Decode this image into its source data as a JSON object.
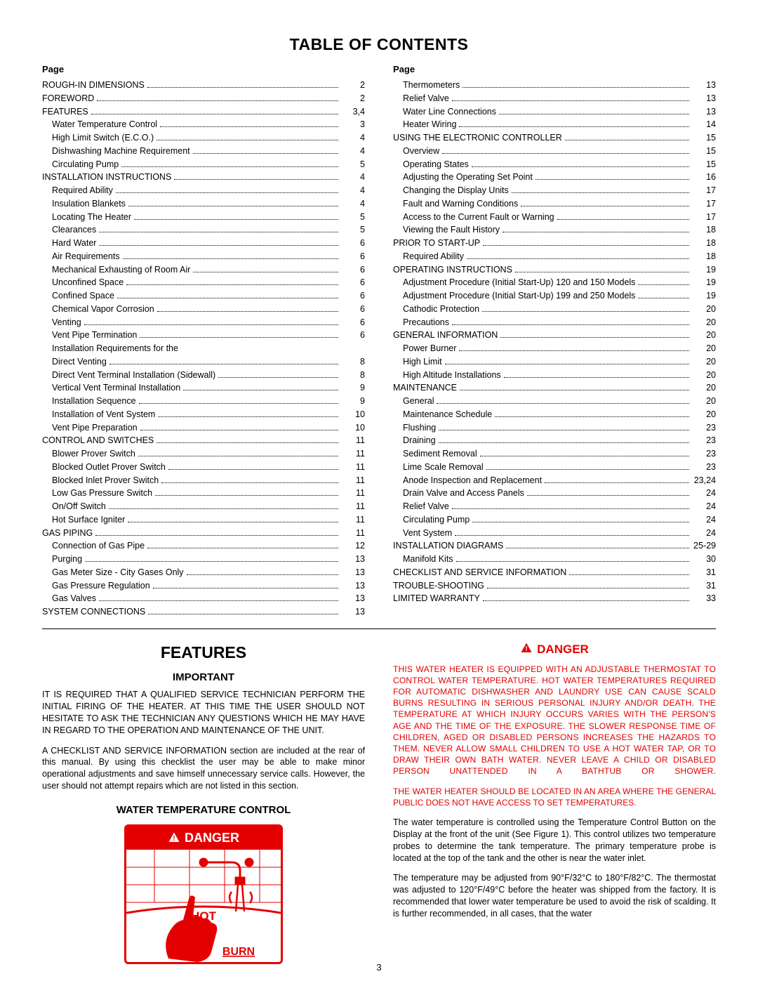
{
  "toc_title": "TABLE OF CONTENTS",
  "page_label": "Page",
  "page_number": "3",
  "toc_left": [
    {
      "label": "ROUGH-IN DIMENSIONS",
      "page": "2",
      "indent": 0
    },
    {
      "label": "FOREWORD",
      "page": "2",
      "indent": 0
    },
    {
      "label": "FEATURES",
      "page": "3,4",
      "indent": 0
    },
    {
      "label": "Water Temperature Control",
      "page": "3",
      "indent": 1
    },
    {
      "label": "High Limit Switch (E.C.O.)",
      "page": "4",
      "indent": 1
    },
    {
      "label": "Dishwashing Machine Requirement",
      "page": "4",
      "indent": 1
    },
    {
      "label": "Circulating Pump",
      "page": "5",
      "indent": 1
    },
    {
      "label": "INSTALLATION INSTRUCTIONS",
      "page": "4",
      "indent": 0
    },
    {
      "label": "Required Ability",
      "page": "4",
      "indent": 1
    },
    {
      "label": "Insulation Blankets",
      "page": "4",
      "indent": 1
    },
    {
      "label": "Locating The Heater",
      "page": "5",
      "indent": 1
    },
    {
      "label": "Clearances",
      "page": "5",
      "indent": 1
    },
    {
      "label": "Hard Water",
      "page": "6",
      "indent": 1
    },
    {
      "label": "Air Requirements",
      "page": "6",
      "indent": 1
    },
    {
      "label": "Mechanical Exhausting of Room Air",
      "page": "6",
      "indent": 1
    },
    {
      "label": "Unconfined Space",
      "page": "6",
      "indent": 1
    },
    {
      "label": "Confined Space",
      "page": "6",
      "indent": 1
    },
    {
      "label": "Chemical Vapor Corrosion",
      "page": "6",
      "indent": 1
    },
    {
      "label": "Venting",
      "page": "6",
      "indent": 1
    },
    {
      "label": "Vent Pipe Termination",
      "page": "6",
      "indent": 1
    },
    {
      "label": "Installation Requirements for the",
      "page": "",
      "indent": 1,
      "nodots": true
    },
    {
      "label": "Direct Venting",
      "page": "8",
      "indent": 1
    },
    {
      "label": "Direct Vent Terminal Installation (Sidewall)",
      "page": "8",
      "indent": 1
    },
    {
      "label": "Vertical Vent Terminal Installation",
      "page": "9",
      "indent": 1
    },
    {
      "label": "Installation Sequence",
      "page": "9",
      "indent": 1
    },
    {
      "label": "Installation of Vent System",
      "page": "10",
      "indent": 1
    },
    {
      "label": "Vent Pipe Preparation",
      "page": "10",
      "indent": 1
    },
    {
      "label": "CONTROL AND SWITCHES",
      "page": "11",
      "indent": 0
    },
    {
      "label": "Blower Prover Switch",
      "page": "11",
      "indent": 1
    },
    {
      "label": "Blocked Outlet Prover Switch",
      "page": "11",
      "indent": 1
    },
    {
      "label": "Blocked Inlet Prover Switch",
      "page": "11",
      "indent": 1
    },
    {
      "label": "Low Gas Pressure Switch",
      "page": "11",
      "indent": 1
    },
    {
      "label": "On/Off Switch",
      "page": "11",
      "indent": 1
    },
    {
      "label": "Hot Surface Igniter",
      "page": "11",
      "indent": 1
    },
    {
      "label": "GAS PIPING",
      "page": "11",
      "indent": 0
    },
    {
      "label": "Connection of Gas Pipe",
      "page": "12",
      "indent": 1
    },
    {
      "label": "Purging",
      "page": "13",
      "indent": 1
    },
    {
      "label": "Gas Meter Size - City Gases Only",
      "page": "13",
      "indent": 1
    },
    {
      "label": "Gas Pressure Regulation",
      "page": "13",
      "indent": 1
    },
    {
      "label": "Gas Valves",
      "page": "13",
      "indent": 1
    },
    {
      "label": "SYSTEM CONNECTIONS",
      "page": "13",
      "indent": 0
    }
  ],
  "toc_right": [
    {
      "label": "Thermometers",
      "page": "13",
      "indent": 1
    },
    {
      "label": "Relief Valve",
      "page": "13",
      "indent": 1
    },
    {
      "label": "Water Line Connections",
      "page": "13",
      "indent": 1
    },
    {
      "label": "Heater Wiring",
      "page": "14",
      "indent": 1
    },
    {
      "label": "USING THE ELECTRONIC CONTROLLER",
      "page": "15",
      "indent": 0
    },
    {
      "label": "Overview",
      "page": "15",
      "indent": 1
    },
    {
      "label": "Operating States",
      "page": "15",
      "indent": 1
    },
    {
      "label": "Adjusting the Operating Set Point",
      "page": "16",
      "indent": 1
    },
    {
      "label": "Changing the Display Units",
      "page": "17",
      "indent": 1
    },
    {
      "label": "Fault and Warning Conditions",
      "page": "17",
      "indent": 1
    },
    {
      "label": "Access to the Current Fault or Warning",
      "page": "17",
      "indent": 1
    },
    {
      "label": "Viewing the Fault History",
      "page": "18",
      "indent": 1
    },
    {
      "label": "PRIOR TO START-UP",
      "page": "18",
      "indent": 0
    },
    {
      "label": "Required Ability",
      "page": "18",
      "indent": 1
    },
    {
      "label": "OPERATING INSTRUCTIONS",
      "page": "19",
      "indent": 0
    },
    {
      "label": "Adjustment Procedure (Initial Start-Up) 120 and 150 Models",
      "page": "19",
      "indent": 1
    },
    {
      "label": "Adjustment Procedure (Initial Start-Up) 199 and 250 Models",
      "page": "19",
      "indent": 1
    },
    {
      "label": "Cathodic Protection",
      "page": "20",
      "indent": 1
    },
    {
      "label": "Precautions",
      "page": "20",
      "indent": 1
    },
    {
      "label": "GENERAL INFORMATION",
      "page": "20",
      "indent": 0
    },
    {
      "label": "Power Burner",
      "page": "20",
      "indent": 1
    },
    {
      "label": "High Limit",
      "page": "20",
      "indent": 1
    },
    {
      "label": "High Altitude Installations",
      "page": "20",
      "indent": 1
    },
    {
      "label": "MAINTENANCE",
      "page": "20",
      "indent": 0
    },
    {
      "label": "General",
      "page": "20",
      "indent": 1
    },
    {
      "label": "Maintenance Schedule",
      "page": "20",
      "indent": 1
    },
    {
      "label": "Flushing",
      "page": "23",
      "indent": 1
    },
    {
      "label": "Draining",
      "page": "23",
      "indent": 1
    },
    {
      "label": "Sediment Removal",
      "page": "23",
      "indent": 1
    },
    {
      "label": "Lime Scale Removal",
      "page": "23",
      "indent": 1
    },
    {
      "label": "Anode Inspection and Replacement",
      "page": "23,24",
      "indent": 1
    },
    {
      "label": "Drain Valve and Access Panels",
      "page": "24",
      "indent": 1
    },
    {
      "label": "Relief Valve",
      "page": "24",
      "indent": 1
    },
    {
      "label": "Circulating Pump",
      "page": "24",
      "indent": 1
    },
    {
      "label": "Vent System",
      "page": "24",
      "indent": 1
    },
    {
      "label": "INSTALLATION DIAGRAMS",
      "page": "25-29",
      "indent": 0
    },
    {
      "label": "Manifold Kits",
      "page": "30",
      "indent": 1
    },
    {
      "label": "CHECKLIST AND SERVICE INFORMATION",
      "page": "31",
      "indent": 0
    },
    {
      "label": "TROUBLE-SHOOTING",
      "page": "31",
      "indent": 0
    },
    {
      "label": "LIMITED WARRANTY",
      "page": "33",
      "indent": 0
    }
  ],
  "features": {
    "title": "FEATURES",
    "important_label": "IMPORTANT",
    "important_p1": "IT IS REQUIRED THAT A QUALIFIED SERVICE TECHNICIAN PERFORM THE INITIAL FIRING OF THE HEATER. AT THIS TIME THE USER SHOULD NOT HESITATE TO ASK THE TECHNICIAN ANY QUESTIONS WHICH HE MAY HAVE IN REGARD TO THE OPERATION AND MAINTENANCE OF THE UNIT.",
    "important_p2": "A CHECKLIST AND SERVICE INFORMATION section are included at the rear of this manual. By using this checklist the user may be able to make minor operational adjustments and save himself unnecessary service calls. However, the user should not attempt repairs which are not listed in this section.",
    "wtc_label": "WATER TEMPERATURE CONTROL",
    "danger_word": "DANGER",
    "hot_word": "HOT",
    "burn_word": "BURN",
    "danger_p1": "THIS WATER HEATER IS EQUIPPED WITH AN ADJUSTABLE THERMOSTAT TO CONTROL WATER TEMPERATURE. HOT WATER TEMPERATURES REQUIRED FOR AUTOMATIC DISHWASHER AND LAUNDRY USE CAN CAUSE SCALD BURNS RESULTING IN SERIOUS PERSONAL INJURY AND/OR DEATH. THE TEMPERATURE AT WHICH INJURY OCCURS VARIES WITH THE PERSON'S AGE AND THE TIME OF THE EXPOSURE. THE SLOWER RESPONSE TIME OF CHILDREN, AGED OR DISABLED PERSONS INCREASES THE HAZARDS TO THEM. NEVER ALLOW SMALL CHILDREN TO USE A HOT WATER TAP, OR TO DRAW THEIR OWN BATH WATER. NEVER LEAVE A CHILD OR DISABLED PERSON UNATTENDED IN A BATHTUB OR SHOWER.",
    "danger_p2": "THE WATER HEATER SHOULD BE LOCATED IN AN AREA WHERE THE GENERAL PUBLIC DOES NOT HAVE ACCESS TO SET TEMPERATURES.",
    "body_p1": "The water temperature is controlled using the Temperature Control Button on the Display at the front of the unit (See Figure 1). This control utilizes two temperature probes to determine the tank temperature. The primary temperature probe is located at the top of the tank and the other is near the water inlet.",
    "body_p2": "The temperature may be adjusted from 90°F/32°C to 180°F/82°C. The thermostat was adjusted to 120°F/49°C before the heater was shipped from the factory. It is recommended that lower water temperature be used to avoid the risk of scalding. It is further recommended, in all cases, that the water"
  }
}
